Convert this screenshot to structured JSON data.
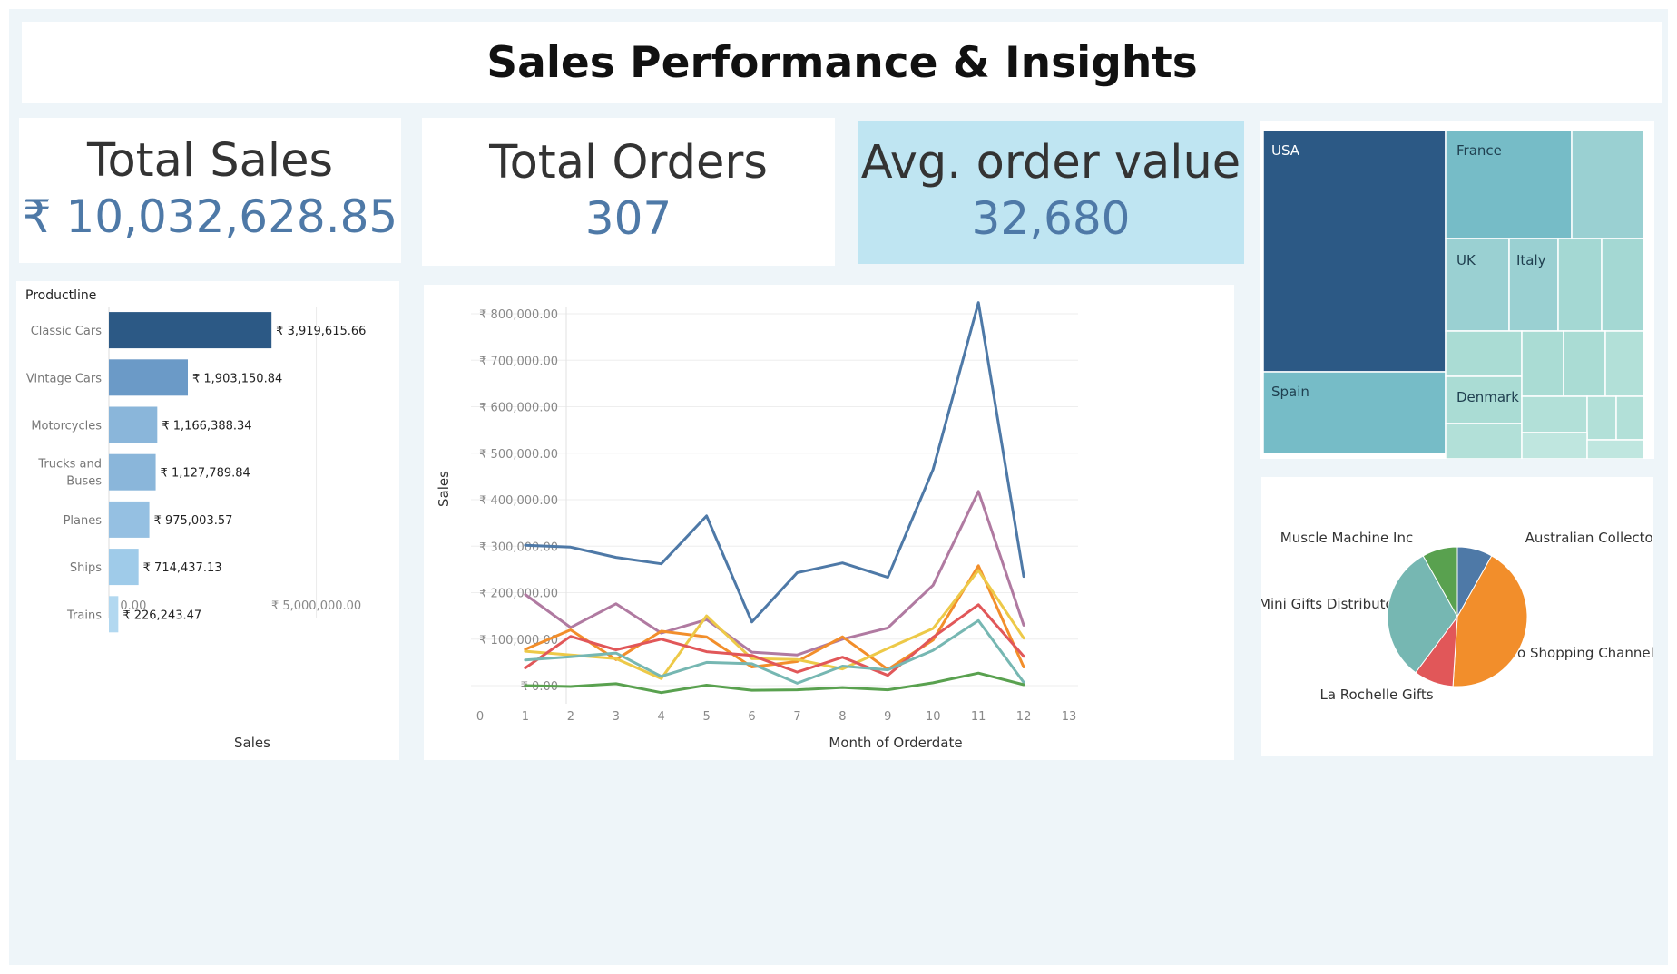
{
  "dashboard_title": "Sales Performance & Insights",
  "kpis": {
    "total_sales": {
      "label": "Total Sales",
      "value": "₹ 10,032,628.85"
    },
    "total_orders": {
      "label": "Total Orders",
      "value": "307"
    },
    "avg_order_value": {
      "label": "Avg. order value",
      "value": "32,680"
    }
  },
  "colors": {
    "kpi_value": "#4e79a7",
    "highlight_panel": "#bfe5f2",
    "background": "#eef5f9"
  },
  "chart_data": [
    {
      "type": "bar",
      "orientation": "horizontal",
      "header": "Productline",
      "xlabel": "Sales",
      "xlim": [
        0,
        6300000
      ],
      "x_ticks": [
        0,
        5000000
      ],
      "x_tick_labels": [
        "₹ 0.00",
        "₹ 5,000,000.00"
      ],
      "categories": [
        "Classic Cars",
        "Vintage Cars",
        "Motorcycles",
        "Trucks and Buses",
        "Planes",
        "Ships",
        "Trains"
      ],
      "values": [
        3919615.66,
        1903150.84,
        1166388.34,
        1127789.84,
        975003.57,
        714437.13,
        226243.47
      ],
      "data_labels": [
        "₹ 3,919,615.66",
        "₹ 1,903,150.84",
        "₹ 1,166,388.34",
        "₹ 1,127,789.84",
        "₹ 975,003.57",
        "₹ 714,437.13",
        "₹ 226,243.47"
      ],
      "colors": [
        "#2c5985",
        "#6b9ac7",
        "#8ab6da",
        "#8ab6da",
        "#95c0e2",
        "#9fcbe9",
        "#b2d8f0"
      ]
    },
    {
      "type": "line",
      "xlabel": "Month of Orderdate",
      "ylabel": "Sales",
      "xlim": [
        0,
        13
      ],
      "ylim": [
        0,
        800000
      ],
      "x_ticks": [
        0,
        1,
        2,
        3,
        4,
        5,
        6,
        7,
        8,
        9,
        10,
        11,
        12,
        13
      ],
      "y_ticks": [
        0,
        100000,
        200000,
        300000,
        400000,
        500000,
        600000,
        700000,
        800000
      ],
      "y_tick_labels": [
        "₹ 0.00",
        "₹ 100,000.00",
        "₹ 200,000.00",
        "₹ 300,000.00",
        "₹ 400,000.00",
        "₹ 500,000.00",
        "₹ 600,000.00",
        "₹ 700,000.00",
        "₹ 800,000.00"
      ],
      "x": [
        1,
        2,
        3,
        4,
        5,
        6,
        7,
        8,
        9,
        10,
        11,
        12
      ],
      "series": [
        {
          "color": "#4e79a7",
          "values": [
            302000,
            298000,
            276000,
            262000,
            365000,
            137000,
            243000,
            264000,
            233000,
            465000,
            824000,
            235000
          ]
        },
        {
          "color": "#b07aa1",
          "values": [
            196000,
            125000,
            176000,
            113000,
            142000,
            72000,
            66000,
            100000,
            124000,
            216000,
            418000,
            130000
          ]
        },
        {
          "color": "#f28e2b",
          "values": [
            78000,
            120000,
            56000,
            117000,
            105000,
            40000,
            52000,
            105000,
            35000,
            98000,
            258000,
            40000
          ]
        },
        {
          "color": "#edc948",
          "values": [
            74000,
            66000,
            58000,
            15000,
            150000,
            58000,
            56000,
            36000,
            80000,
            123000,
            248000,
            102000
          ]
        },
        {
          "color": "#e15759",
          "values": [
            38000,
            106000,
            77000,
            100000,
            73000,
            65000,
            29000,
            61000,
            22000,
            104000,
            174000,
            63000
          ]
        },
        {
          "color": "#76b7b2",
          "values": [
            55000,
            62000,
            70000,
            20000,
            50000,
            47000,
            5000,
            42000,
            34000,
            76000,
            140000,
            7000
          ]
        },
        {
          "color": "#59a14f",
          "values": [
            0,
            -2000,
            4000,
            -15000,
            1000,
            -10000,
            -9000,
            -4000,
            -9000,
            6000,
            27000,
            2000
          ]
        }
      ]
    },
    {
      "type": "treemap",
      "labels": [
        "USA",
        "France",
        "Spain",
        "UK",
        "Italy",
        "Denmark"
      ],
      "colors": {
        "usa": "#2c5985",
        "france": "#76bcc7",
        "spain": "#76bcc7",
        "others_dark": "#9ad0d2",
        "others_light": "#aadcd4"
      }
    },
    {
      "type": "pie",
      "labels": [
        "Euro Shopping Channel",
        "Mini Gifts Distributors Ltd.",
        "Australian Collectors, Co.",
        "Muscle Machine Inc",
        "La Rochelle Gifts"
      ],
      "values": [
        42,
        31,
        8,
        8,
        9
      ],
      "colors": [
        "#f28e2b",
        "#76b7b2",
        "#4e79a7",
        "#59a14f",
        "#e15759"
      ]
    }
  ]
}
